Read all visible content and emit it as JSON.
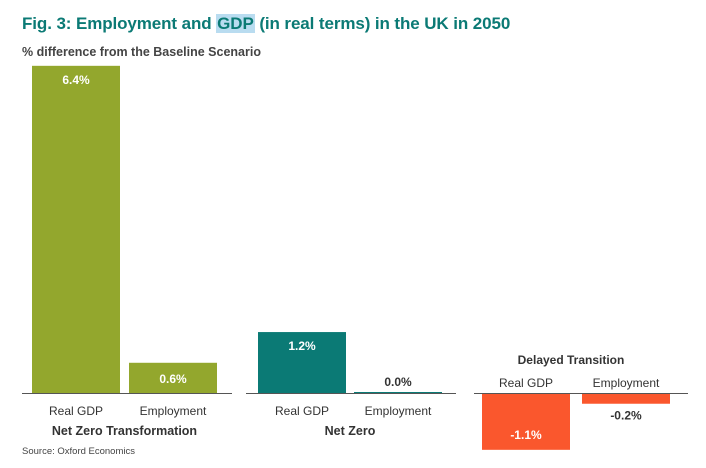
{
  "header": {
    "title_pre": "Fig. 3: Employment and ",
    "title_hl": "GDP",
    "title_post": " (in real terms) in the UK in 2050",
    "subtitle": "% difference from the Baseline Scenario"
  },
  "source": "Source: Oxford Economics",
  "chart_data": {
    "type": "bar",
    "title": "Fig. 3: Employment and GDP (in real terms) in the UK in 2050",
    "subtitle": "% difference from the Baseline Scenario",
    "ylabel": "",
    "unit": "%",
    "grid": false,
    "legend": "none",
    "categories": [
      "Real GDP",
      "Employment"
    ],
    "series": [
      {
        "name": "Net Zero Transformation",
        "values": [
          6.4,
          0.6
        ],
        "labels": [
          "6.4%",
          "0.6%"
        ],
        "color": "#93a72d"
      },
      {
        "name": "Net Zero",
        "values": [
          1.2,
          0.0
        ],
        "labels": [
          "1.2%",
          "0.0%"
        ],
        "color": "#0b7a75"
      },
      {
        "name": "Delayed Transition",
        "values": [
          -1.1,
          -0.2
        ],
        "labels": [
          "-1.1%",
          "-0.2%"
        ],
        "color": "#fa572d"
      }
    ]
  }
}
